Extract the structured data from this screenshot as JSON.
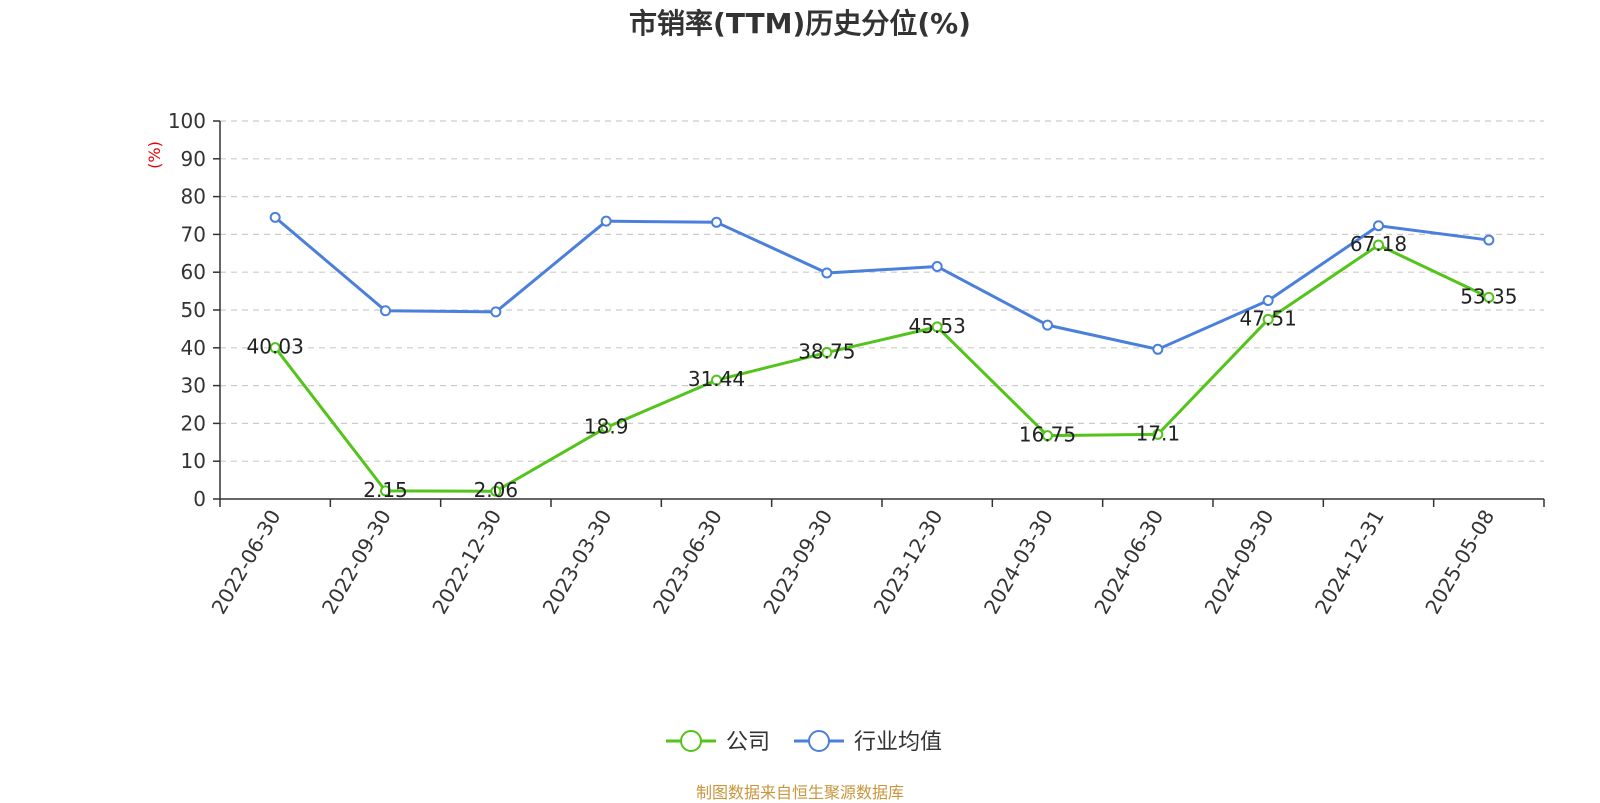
{
  "chart_data": {
    "type": "line",
    "title": "市销率(TTM)历史分位(%)",
    "ylabel": "(%)",
    "xlabel": "",
    "ylim": [
      0,
      100
    ],
    "yticks": [
      0,
      10,
      20,
      30,
      40,
      50,
      60,
      70,
      80,
      90,
      100
    ],
    "grid": true,
    "legend_position": "bottom",
    "categories": [
      "2022-06-30",
      "2022-09-30",
      "2022-12-30",
      "2023-03-30",
      "2023-06-30",
      "2023-09-30",
      "2023-12-30",
      "2024-03-30",
      "2024-06-30",
      "2024-09-30",
      "2024-12-31",
      "2025-05-08"
    ],
    "series": [
      {
        "name": "公司",
        "color": "#52c41a",
        "values": [
          40.03,
          2.15,
          2.06,
          18.9,
          31.44,
          38.75,
          45.53,
          16.75,
          17.1,
          47.51,
          67.18,
          53.35
        ],
        "labels": [
          "40.03",
          "2.15",
          "2.06",
          "18.9",
          "31.44",
          "38.75",
          "45.53",
          "16.75",
          "17.1",
          "47.51",
          "67.18",
          "53.35"
        ]
      },
      {
        "name": "行业均值",
        "color": "#4a7fdc",
        "values": [
          74.5,
          49.8,
          49.5,
          73.5,
          73.2,
          59.8,
          61.5,
          46.0,
          39.6,
          52.5,
          72.3,
          68.5
        ]
      }
    ],
    "source": "制图数据来自恒生聚源数据库"
  }
}
